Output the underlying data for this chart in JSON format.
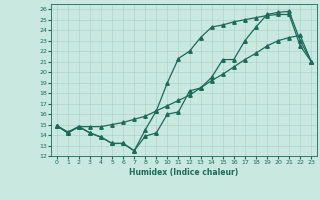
{
  "xlabel": "Humidex (Indice chaleur)",
  "background_color": "#c8e8e0",
  "line_color": "#1a6b5a",
  "grid_color": "#a8cfc8",
  "xlim": [
    -0.5,
    23.5
  ],
  "ylim": [
    12,
    26.5
  ],
  "xticks": [
    0,
    1,
    2,
    3,
    4,
    5,
    6,
    7,
    8,
    9,
    10,
    11,
    12,
    13,
    14,
    15,
    16,
    17,
    18,
    19,
    20,
    21,
    22,
    23
  ],
  "yticks": [
    12,
    13,
    14,
    15,
    16,
    17,
    18,
    19,
    20,
    21,
    22,
    23,
    24,
    25,
    26
  ],
  "line1_x": [
    0,
    1,
    2,
    3,
    4,
    5,
    6,
    7,
    8,
    9,
    10,
    11,
    12,
    13,
    14,
    15,
    16,
    17,
    18,
    19,
    20,
    21,
    22,
    23
  ],
  "line1_y": [
    14.9,
    14.2,
    14.8,
    14.2,
    13.8,
    13.2,
    13.2,
    12.5,
    13.9,
    14.2,
    16.0,
    16.2,
    18.2,
    18.5,
    19.5,
    21.2,
    21.2,
    23.0,
    24.3,
    25.5,
    25.7,
    25.8,
    23.0,
    21.0
  ],
  "line2_x": [
    0,
    1,
    2,
    3,
    4,
    5,
    6,
    7,
    8,
    9,
    10,
    11,
    12,
    13,
    14,
    15,
    16,
    17,
    18,
    19,
    20,
    21,
    22,
    23
  ],
  "line2_y": [
    14.9,
    14.3,
    14.8,
    14.8,
    14.8,
    15.0,
    15.2,
    15.5,
    15.8,
    16.3,
    16.8,
    17.3,
    17.8,
    18.5,
    19.2,
    19.8,
    20.5,
    21.2,
    21.8,
    22.5,
    23.0,
    23.3,
    23.5,
    21.0
  ],
  "line3_x": [
    0,
    1,
    2,
    3,
    4,
    5,
    6,
    7,
    8,
    9,
    10,
    11,
    12,
    13,
    14,
    15,
    16,
    17,
    18,
    19,
    20,
    21,
    22,
    23
  ],
  "line3_y": [
    14.9,
    14.2,
    14.8,
    14.2,
    13.8,
    13.2,
    13.2,
    12.5,
    14.5,
    16.3,
    19.0,
    21.3,
    22.0,
    23.3,
    24.3,
    24.5,
    24.8,
    25.0,
    25.2,
    25.4,
    25.5,
    25.5,
    22.5,
    21.0
  ],
  "marker": "^",
  "markersize": 2.5,
  "linewidth": 0.9
}
